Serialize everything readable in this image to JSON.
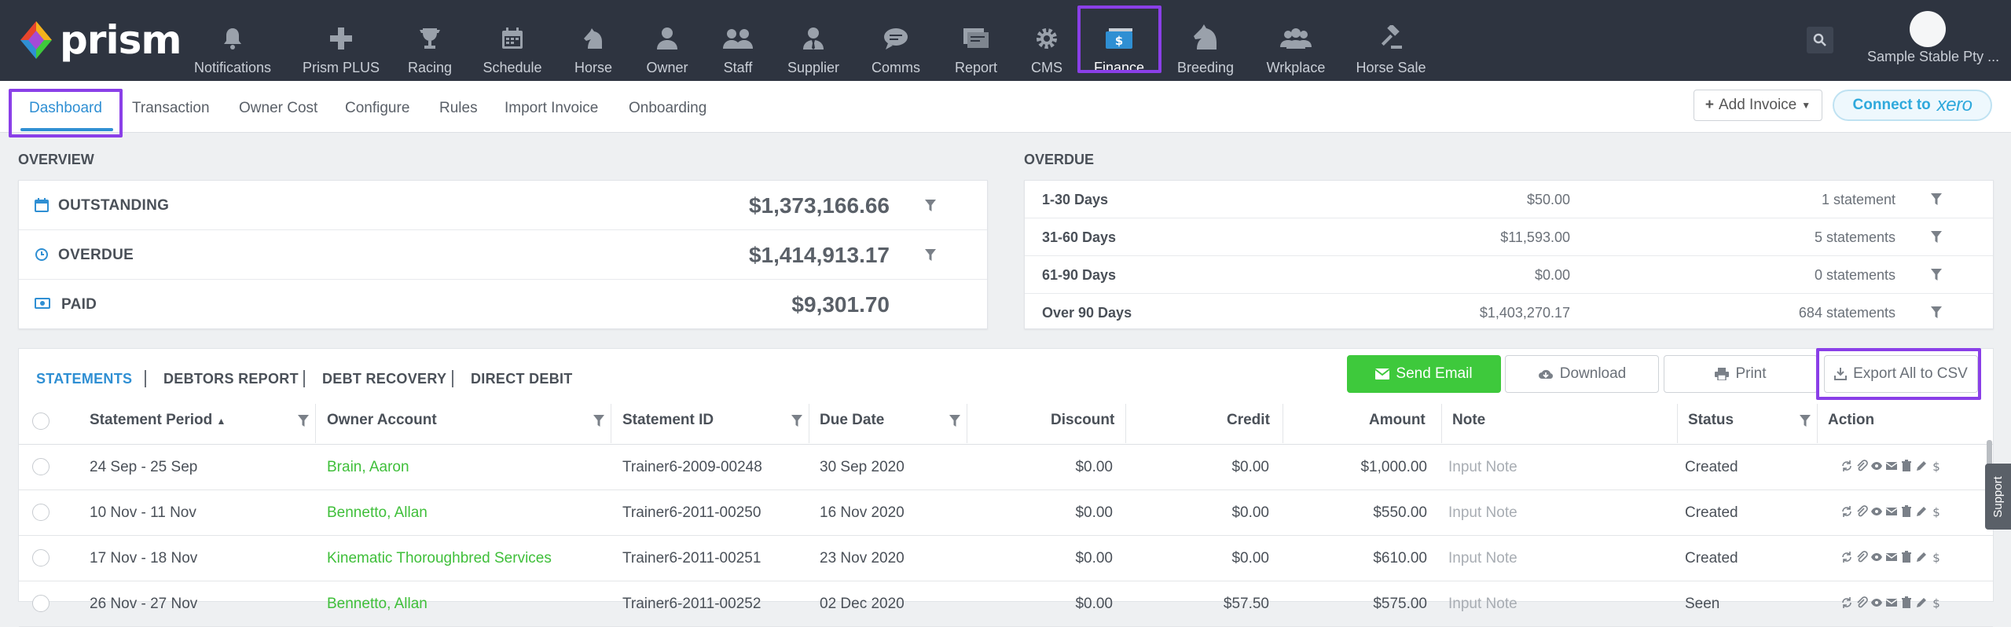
{
  "app": {
    "logo_text": "prism",
    "user_name": "Sample Stable Pty ..."
  },
  "nav": [
    {
      "label": "Notifications",
      "icon": "bell-icon"
    },
    {
      "label": "Prism PLUS",
      "icon": "plus-icon"
    },
    {
      "label": "Racing",
      "icon": "trophy-icon"
    },
    {
      "label": "Schedule",
      "icon": "calendar-icon"
    },
    {
      "label": "Horse",
      "icon": "horse-icon"
    },
    {
      "label": "Owner",
      "icon": "user-icon"
    },
    {
      "label": "Staff",
      "icon": "users-icon"
    },
    {
      "label": "Supplier",
      "icon": "user-tie-icon"
    },
    {
      "label": "Comms",
      "icon": "chat-icon"
    },
    {
      "label": "Report",
      "icon": "report-icon"
    },
    {
      "label": "CMS",
      "icon": "gear-icon"
    },
    {
      "label": "Finance",
      "icon": "dollar-icon",
      "active": true
    },
    {
      "label": "Breeding",
      "icon": "horse-head-icon"
    },
    {
      "label": "Wrkplace",
      "icon": "group-icon"
    },
    {
      "label": "Horse Sale",
      "icon": "gavel-icon"
    }
  ],
  "subnav": {
    "tabs": [
      "Dashboard",
      "Transaction",
      "Owner Cost",
      "Configure",
      "Rules",
      "Import Invoice",
      "Onboarding"
    ],
    "active": "Dashboard",
    "add_invoice": "Add Invoice",
    "connect_to": "Connect to",
    "xero": "xero"
  },
  "overview": {
    "title": "OVERVIEW",
    "rows": [
      {
        "label": "OUTSTANDING",
        "value": "$1,373,166.66",
        "icon": "calendar-icon"
      },
      {
        "label": "OVERDUE",
        "value": "$1,414,913.17",
        "icon": "clock-icon"
      },
      {
        "label": "PAID",
        "value": "$9,301.70",
        "icon": "money-icon"
      }
    ]
  },
  "overdue": {
    "title": "OVERDUE",
    "rows": [
      {
        "label": "1-30 Days",
        "amount": "$50.00",
        "count": "1 statement"
      },
      {
        "label": "31-60 Days",
        "amount": "$11,593.00",
        "count": "5 statements"
      },
      {
        "label": "61-90 Days",
        "amount": "$0.00",
        "count": "0 statements"
      },
      {
        "label": "Over 90 Days",
        "amount": "$1,403,270.17",
        "count": "684 statements"
      }
    ]
  },
  "statements": {
    "tabs": [
      "STATEMENTS",
      "DEBTORS REPORT",
      "DEBT RECOVERY",
      "DIRECT DEBIT"
    ],
    "buttons": {
      "send_email": "Send Email",
      "download": "Download",
      "print": "Print",
      "export": "Export All to CSV"
    },
    "columns": [
      "Statement Period",
      "Owner Account",
      "Statement ID",
      "Due Date",
      "Discount",
      "Credit",
      "Amount",
      "Note",
      "Status",
      "Action"
    ],
    "rows": [
      {
        "period": "24 Sep - 25 Sep",
        "owner": "Brain, Aaron",
        "id": "Trainer6-2009-00248",
        "due": "30 Sep 2020",
        "discount": "$0.00",
        "credit": "$0.00",
        "amount": "$1,000.00",
        "note": "Input Note",
        "status": "Created"
      },
      {
        "period": "10 Nov - 11 Nov",
        "owner": "Bennetto, Allan",
        "id": "Trainer6-2011-00250",
        "due": "16 Nov 2020",
        "discount": "$0.00",
        "credit": "$0.00",
        "amount": "$550.00",
        "note": "Input Note",
        "status": "Created"
      },
      {
        "period": "17 Nov - 18 Nov",
        "owner": "Kinematic Thoroughbred Services",
        "id": "Trainer6-2011-00251",
        "due": "23 Nov 2020",
        "discount": "$0.00",
        "credit": "$0.00",
        "amount": "$610.00",
        "note": "Input Note",
        "status": "Created"
      },
      {
        "period": "26 Nov - 27 Nov",
        "owner": "Bennetto, Allan",
        "id": "Trainer6-2011-00252",
        "due": "02 Dec 2020",
        "discount": "$0.00",
        "credit": "$57.50",
        "amount": "$575.00",
        "note": "Input Note",
        "status": "Seen"
      }
    ]
  },
  "support": "Support",
  "colors": {
    "topbar": "#2e3440",
    "accent": "#2f8fd3",
    "green": "#3ec93c",
    "highlight": "#8a3fe8"
  }
}
